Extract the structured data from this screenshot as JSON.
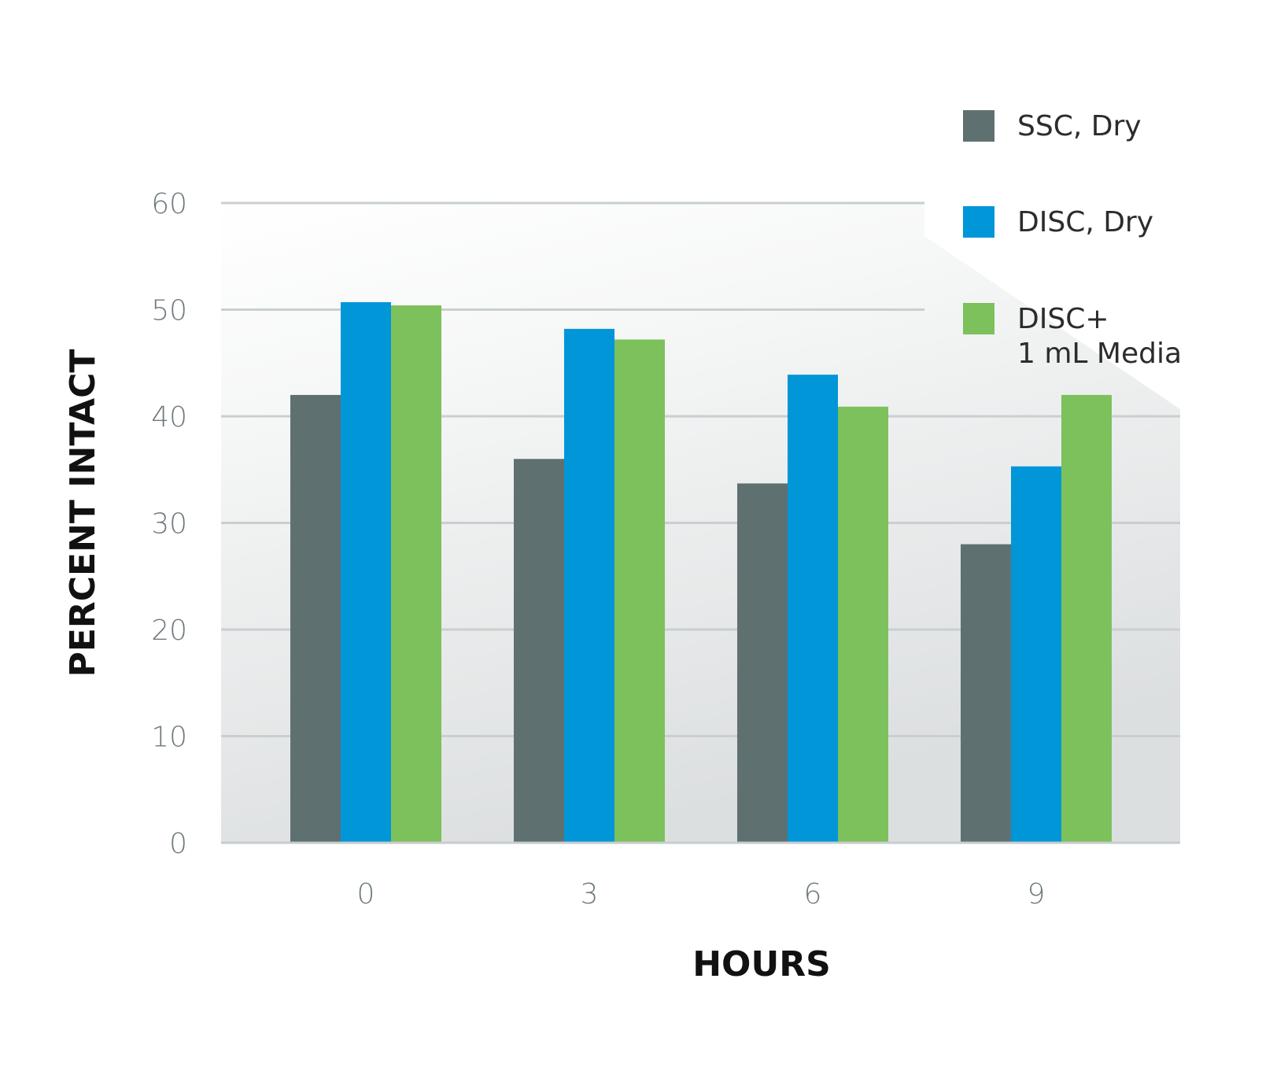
{
  "chart_data": {
    "type": "bar",
    "categories": [
      "0",
      "3",
      "6",
      "9"
    ],
    "series": [
      {
        "name": "SSC, Dry",
        "color": "#5f7070",
        "values": [
          42,
          36,
          33.7,
          28
        ]
      },
      {
        "name": "DISC, Dry",
        "color": "#0096d8",
        "values": [
          50.7,
          48.2,
          43.9,
          35.3
        ]
      },
      {
        "name": "DISC+ 1 mL Media",
        "name_lines": [
          "DISC+",
          "1 mL Media"
        ],
        "color": "#7cc15c",
        "values": [
          50.4,
          47.2,
          40.9,
          42
        ]
      }
    ],
    "xlabel": "HOURS",
    "ylabel": "PERCENT INTACT",
    "ylim": [
      0,
      60
    ],
    "yticks": [
      "0",
      "10",
      "20",
      "30",
      "40",
      "50",
      "60"
    ],
    "grid": true,
    "legend": "top-right"
  }
}
